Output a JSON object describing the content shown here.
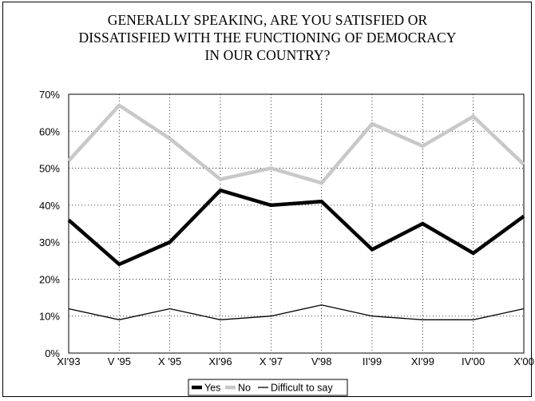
{
  "chart_data": {
    "type": "line",
    "title": "GENERALLY SPEAKING, ARE YOU SATISFIED OR DISSATISFIED WITH THE FUNCTIONING OF DEMOCRACY IN OUR COUNTRY?",
    "title_lines": [
      "GENERALLY SPEAKING, ARE YOU SATISFIED OR",
      "DISSATISFIED WITH THE FUNCTIONING OF DEMOCRACY",
      "IN OUR COUNTRY?"
    ],
    "categories": [
      "XI'93",
      "V '95",
      "X '95",
      "XI'96",
      "X '97",
      "V'98",
      "II'99",
      "XI'99",
      "IV'00",
      "X'00"
    ],
    "y_ticks": [
      "0%",
      "10%",
      "20%",
      "30%",
      "40%",
      "50%",
      "60%",
      "70%"
    ],
    "ylim": [
      0,
      70
    ],
    "y_unit": "%",
    "grid": true,
    "legend_position": "bottom",
    "series": [
      {
        "name": "Yes",
        "color": "#000000",
        "values": [
          36,
          24,
          30,
          44,
          40,
          41,
          28,
          35,
          27,
          37
        ]
      },
      {
        "name": "No",
        "color": "#c8c8c8",
        "values": [
          52,
          67,
          58,
          47,
          50,
          46,
          62,
          56,
          64,
          51
        ]
      },
      {
        "name": "Difficult to say",
        "color": "#000000",
        "values": [
          12,
          9,
          12,
          9,
          10,
          13,
          10,
          9,
          9,
          12
        ]
      }
    ]
  }
}
